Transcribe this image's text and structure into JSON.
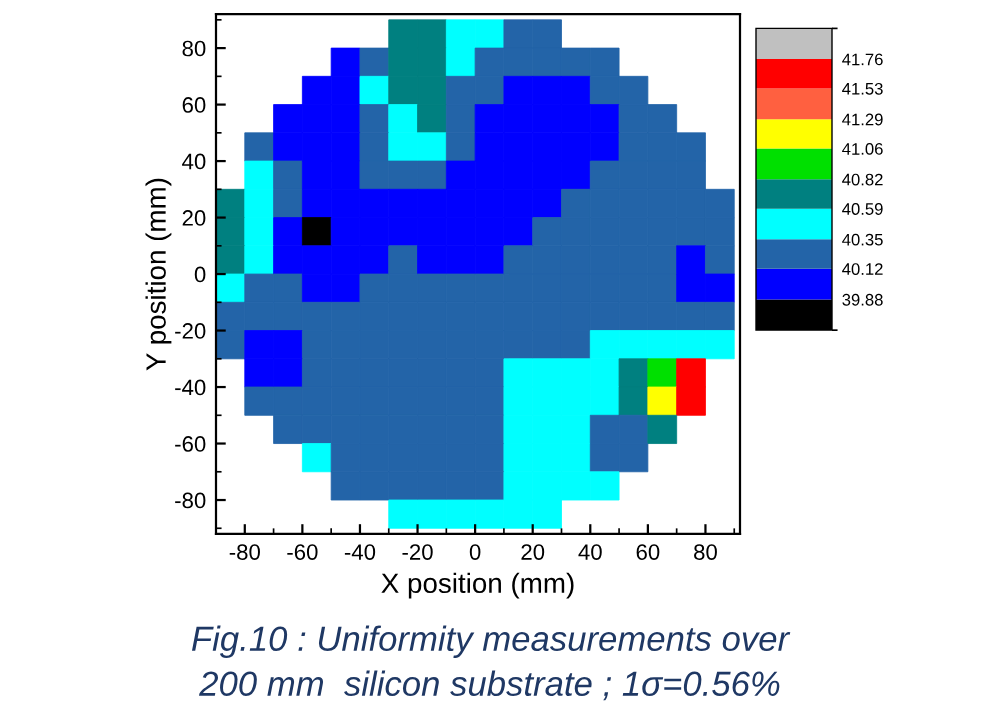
{
  "chart_data": {
    "type": "heatmap",
    "xlabel": "X position (mm)",
    "ylabel": "Y position (mm)",
    "x": [
      -85,
      -75,
      -65,
      -55,
      -45,
      -35,
      -25,
      -15,
      -5,
      5,
      15,
      25,
      35,
      45,
      55,
      65,
      75,
      85
    ],
    "y": [
      85,
      75,
      65,
      55,
      45,
      35,
      25,
      15,
      5,
      -5,
      -15,
      -25,
      -35,
      -45,
      -55,
      -65,
      -75,
      -85
    ],
    "xlim": [
      -90,
      92
    ],
    "ylim": [
      -92,
      92
    ],
    "xticks": [
      -80,
      -60,
      -40,
      -20,
      0,
      20,
      40,
      60,
      80
    ],
    "yticks": [
      -80,
      -60,
      -40,
      -20,
      0,
      20,
      40,
      60,
      80
    ],
    "clim": [
      39.64,
      42.0
    ],
    "cticks": [
      {
        "value": 39.88,
        "label": "39.88"
      },
      {
        "value": 40.12,
        "label": "40.12"
      },
      {
        "value": 40.35,
        "label": "40.35"
      },
      {
        "value": 40.59,
        "label": "40.59"
      },
      {
        "value": 40.82,
        "label": "40.82"
      },
      {
        "value": 41.06,
        "label": "41.06"
      },
      {
        "value": 41.29,
        "label": "41.29"
      },
      {
        "value": 41.53,
        "label": "41.53"
      },
      {
        "value": 41.76,
        "label": "41.76"
      }
    ],
    "colors": [
      "#000000",
      "#0000ff",
      "#2364a8",
      "#00ffff",
      "#008080",
      "#00e000",
      "#ffff00",
      "#ff6040",
      "#ff0000",
      "#c0c0c0"
    ],
    "cells": [
      [
        null,
        null,
        null,
        null,
        null,
        null,
        40.7,
        40.7,
        40.47,
        40.47,
        40.24,
        40.24,
        null,
        null,
        null,
        null,
        null,
        null
      ],
      [
        null,
        null,
        null,
        null,
        40.0,
        40.24,
        40.7,
        40.7,
        40.47,
        40.24,
        40.24,
        40.24,
        40.24,
        40.24,
        null,
        null,
        null,
        null
      ],
      [
        null,
        null,
        null,
        40.0,
        40.0,
        40.47,
        40.7,
        40.7,
        40.24,
        40.24,
        40.0,
        40.0,
        40.0,
        40.24,
        40.24,
        null,
        null,
        null
      ],
      [
        null,
        null,
        40.0,
        40.0,
        40.0,
        40.24,
        40.47,
        40.7,
        40.24,
        40.0,
        40.0,
        40.0,
        40.0,
        40.0,
        40.24,
        40.24,
        null,
        null
      ],
      [
        null,
        40.24,
        40.0,
        40.0,
        40.0,
        40.24,
        40.47,
        40.47,
        40.24,
        40.0,
        40.0,
        40.0,
        40.0,
        40.0,
        40.24,
        40.24,
        40.24,
        null
      ],
      [
        null,
        40.47,
        40.24,
        40.0,
        40.0,
        40.24,
        40.24,
        40.24,
        40.0,
        40.0,
        40.0,
        40.0,
        40.0,
        40.24,
        40.24,
        40.24,
        40.24,
        null
      ],
      [
        40.7,
        40.47,
        40.24,
        40.0,
        40.0,
        40.0,
        40.0,
        40.0,
        40.0,
        40.0,
        40.0,
        40.0,
        40.24,
        40.24,
        40.24,
        40.24,
        40.24,
        40.24
      ],
      [
        40.7,
        40.47,
        40.0,
        39.76,
        40.0,
        40.0,
        40.0,
        40.0,
        40.0,
        40.0,
        40.0,
        40.24,
        40.24,
        40.24,
        40.24,
        40.24,
        40.24,
        40.24
      ],
      [
        40.7,
        40.47,
        40.0,
        40.0,
        40.0,
        40.0,
        40.24,
        40.0,
        40.0,
        40.0,
        40.24,
        40.24,
        40.24,
        40.24,
        40.24,
        40.24,
        40.0,
        40.24
      ],
      [
        40.47,
        40.24,
        40.24,
        40.0,
        40.0,
        40.24,
        40.24,
        40.24,
        40.24,
        40.24,
        40.24,
        40.24,
        40.24,
        40.24,
        40.24,
        40.24,
        40.0,
        40.0
      ],
      [
        40.24,
        40.24,
        40.24,
        40.24,
        40.24,
        40.24,
        40.24,
        40.24,
        40.24,
        40.24,
        40.24,
        40.24,
        40.24,
        40.24,
        40.24,
        40.24,
        40.24,
        40.24
      ],
      [
        40.24,
        40.0,
        40.0,
        40.24,
        40.24,
        40.24,
        40.24,
        40.24,
        40.24,
        40.24,
        40.24,
        40.24,
        40.24,
        40.47,
        40.47,
        40.47,
        40.47,
        40.47
      ],
      [
        null,
        40.0,
        40.0,
        40.24,
        40.24,
        40.24,
        40.24,
        40.24,
        40.24,
        40.24,
        40.47,
        40.47,
        40.47,
        40.47,
        40.7,
        40.94,
        41.65,
        null
      ],
      [
        null,
        40.24,
        40.24,
        40.24,
        40.24,
        40.24,
        40.24,
        40.24,
        40.24,
        40.24,
        40.47,
        40.47,
        40.47,
        40.47,
        40.7,
        41.18,
        41.65,
        null
      ],
      [
        null,
        null,
        40.24,
        40.24,
        40.24,
        40.24,
        40.24,
        40.24,
        40.24,
        40.24,
        40.47,
        40.47,
        40.47,
        40.24,
        40.24,
        40.7,
        null,
        null
      ],
      [
        null,
        null,
        null,
        40.47,
        40.24,
        40.24,
        40.24,
        40.24,
        40.24,
        40.24,
        40.47,
        40.47,
        40.47,
        40.24,
        40.24,
        null,
        null,
        null
      ],
      [
        null,
        null,
        null,
        null,
        40.24,
        40.24,
        40.24,
        40.24,
        40.24,
        40.24,
        40.47,
        40.47,
        40.47,
        40.47,
        null,
        null,
        null,
        null
      ],
      [
        null,
        null,
        null,
        null,
        null,
        null,
        40.47,
        40.47,
        40.47,
        40.47,
        40.47,
        40.47,
        null,
        null,
        null,
        null,
        null,
        null
      ]
    ],
    "annotations": [
      "Fig.10 : Uniformity measurements over\n200 mm  silicon substrate ; 1σ=0.56%"
    ]
  }
}
